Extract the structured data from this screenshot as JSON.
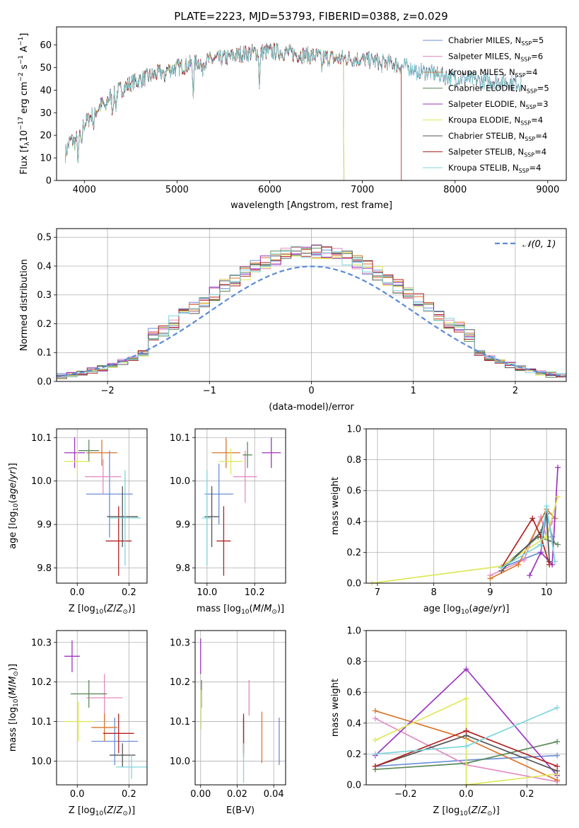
{
  "figure": {
    "title": "PLATE=2223, MJD=53793, FIBERID=0388, z=0.029"
  },
  "chart_data": [
    {
      "id": "spectrum",
      "type": "line",
      "title": "PLATE=2223, MJD=53793, FIBERID=0388, z=0.029",
      "xlabel": "wavelength [Angstrom, rest frame]",
      "ylabel": "Flux [f_λ 10^-17 erg cm^-2 s^-1 A^-1]",
      "xlim": [
        3700,
        9200
      ],
      "ylim": [
        0,
        68
      ],
      "xticks": [
        4000,
        5000,
        6000,
        7000,
        8000,
        9000
      ],
      "yticks": [
        0,
        10,
        20,
        30,
        40,
        50,
        60
      ],
      "legend_position": "top-right",
      "continuum": [
        [
          3795,
          12
        ],
        [
          3850,
          18
        ],
        [
          3900,
          17
        ],
        [
          3950,
          22
        ],
        [
          4000,
          25
        ],
        [
          4100,
          30
        ],
        [
          4200,
          34
        ],
        [
          4300,
          38
        ],
        [
          4500,
          43
        ],
        [
          4700,
          46
        ],
        [
          4900,
          49
        ],
        [
          5100,
          51
        ],
        [
          5300,
          53
        ],
        [
          5500,
          54
        ],
        [
          5700,
          56
        ],
        [
          5900,
          57
        ],
        [
          6100,
          57
        ],
        [
          6300,
          56
        ],
        [
          6500,
          55
        ],
        [
          6700,
          54
        ],
        [
          6900,
          54
        ],
        [
          7100,
          53
        ],
        [
          7300,
          52
        ],
        [
          7500,
          50
        ],
        [
          7700,
          48
        ],
        [
          7900,
          46
        ],
        [
          8100,
          45
        ],
        [
          8300,
          44
        ],
        [
          8500,
          44
        ],
        [
          8700,
          43
        ]
      ],
      "series": [
        {
          "name": "Chabrier MILES, N_SSP=5",
          "label_main": "Chabrier MILES, N",
          "label_sub": "SSP",
          "label_tail": "=5",
          "color": "#6b8fd6",
          "end": 8720
        },
        {
          "name": "Salpeter MILES, N_SSP=6",
          "label_main": "Salpeter MILES, N",
          "label_sub": "SSP",
          "label_tail": "=6",
          "color": "#e38bc2",
          "end": 8720
        },
        {
          "name": "Kroupa MILES, N_SSP=4",
          "label_main": "Kroupa MILES, N",
          "label_sub": "SSP",
          "label_tail": "=4",
          "color": "#d9772b",
          "end": 7420
        },
        {
          "name": "Chabrier ELODIE, N_SSP=5",
          "label_main": "Chabrier ELODIE, N",
          "label_sub": "SSP",
          "label_tail": "=5",
          "color": "#5d8a5a",
          "end": 6800
        },
        {
          "name": "Salpeter ELODIE, N_SSP=3",
          "label_main": "Salpeter ELODIE, N",
          "label_sub": "SSP",
          "label_tail": "=3",
          "color": "#9b36c0",
          "end": 6800
        },
        {
          "name": "Kroupa ELODIE, N_SSP=4",
          "label_main": "Kroupa ELODIE, N",
          "label_sub": "SSP",
          "label_tail": "=4",
          "color": "#dfe85a",
          "end": 6800
        },
        {
          "name": "Chabrier STELIB, N_SSP=4",
          "label_main": "Chabrier STELIB, N",
          "label_sub": "SSP",
          "label_tail": "=4",
          "color": "#555555",
          "end": 8720
        },
        {
          "name": "Salpeter STELIB, N_SSP=4",
          "label_main": "Salpeter STELIB, N",
          "label_sub": "SSP",
          "label_tail": "=4",
          "color": "#b22222",
          "end": 7420
        },
        {
          "name": "Kroupa STELIB, N_SSP=4",
          "label_main": "Kroupa STELIB, N",
          "label_sub": "SSP",
          "label_tail": "=4",
          "color": "#7ed6dc",
          "end": 8720
        }
      ]
    },
    {
      "id": "residuals",
      "type": "histogram",
      "xlabel": "(data-model)/error",
      "ylabel": "Normed distribution",
      "xlim": [
        -2.5,
        2.5
      ],
      "ylim": [
        0,
        0.53
      ],
      "xticks": [
        -2,
        -1,
        0,
        1,
        2
      ],
      "yticks": [
        0.0,
        0.1,
        0.2,
        0.3,
        0.4,
        0.5
      ],
      "bin_width": 0.1,
      "reference_curve": {
        "name": "N(0,1)",
        "style": "dashed",
        "color": "#5b8bd6",
        "mean": 0,
        "sigma": 1
      },
      "legend_position": "top-right",
      "grid": true
    },
    {
      "id": "age_vs_Z",
      "type": "errorbar",
      "xlabel": "Z [log10(Z/Z_sun)]",
      "ylabel": "age [log10(age/yr)]",
      "xlim": [
        -0.08,
        0.27
      ],
      "ylim": [
        9.765,
        10.12
      ],
      "xticks": [
        0.0,
        0.2
      ],
      "yticks": [
        9.8,
        9.9,
        10.0,
        10.1
      ],
      "points": [
        {
          "series": "Chabrier MILES",
          "x": 0.125,
          "y": 9.97,
          "xerr": 0.09,
          "yerr": 0.1
        },
        {
          "series": "Salpeter MILES",
          "x": 0.1,
          "y": 10.01,
          "xerr": 0.07,
          "yerr": 0.04
        },
        {
          "series": "Kroupa MILES",
          "x": 0.095,
          "y": 10.065,
          "xerr": 0.06,
          "yerr": 0.03
        },
        {
          "series": "Chabrier ELODIE",
          "x": 0.045,
          "y": 10.07,
          "xerr": 0.04,
          "yerr": 0.025
        },
        {
          "series": "Salpeter ELODIE",
          "x": -0.01,
          "y": 10.065,
          "xerr": 0.04,
          "yerr": 0.035
        },
        {
          "series": "Kroupa ELODIE",
          "x": 0.0,
          "y": 10.045,
          "xerr": 0.05,
          "yerr": 0.03
        },
        {
          "series": "Chabrier STELIB",
          "x": 0.175,
          "y": 9.918,
          "xerr": 0.06,
          "yerr": 0.07
        },
        {
          "series": "Salpeter STELIB",
          "x": 0.16,
          "y": 9.862,
          "xerr": 0.05,
          "yerr": 0.08
        },
        {
          "series": "Kroupa STELIB",
          "x": 0.185,
          "y": 9.915,
          "xerr": 0.06,
          "yerr": 0.11
        }
      ]
    },
    {
      "id": "age_vs_mass",
      "type": "errorbar",
      "xlabel": "mass [log10(M/M_sun)]",
      "ylabel": "",
      "xlim": [
        9.95,
        10.33
      ],
      "ylim": [
        9.765,
        10.12
      ],
      "xticks": [
        10.0,
        10.2
      ],
      "yticks": [
        9.8,
        9.9,
        10.0,
        10.1
      ],
      "points": [
        {
          "series": "Chabrier MILES",
          "x": 10.05,
          "y": 9.97,
          "xerr": 0.06,
          "yerr": 0.07
        },
        {
          "series": "Salpeter MILES",
          "x": 10.16,
          "y": 10.01,
          "xerr": 0.05,
          "yerr": 0.06
        },
        {
          "series": "Kroupa MILES",
          "x": 10.08,
          "y": 10.065,
          "xerr": 0.06,
          "yerr": 0.035
        },
        {
          "series": "Chabrier ELODIE",
          "x": 10.17,
          "y": 10.06,
          "xerr": 0.02,
          "yerr": 0.03
        },
        {
          "series": "Salpeter ELODIE",
          "x": 10.27,
          "y": 10.065,
          "xerr": 0.04,
          "yerr": 0.035
        },
        {
          "series": "Kroupa ELODIE",
          "x": 10.1,
          "y": 10.045,
          "xerr": 0.05,
          "yerr": 0.03
        },
        {
          "series": "Chabrier STELIB",
          "x": 10.02,
          "y": 9.918,
          "xerr": 0.03,
          "yerr": 0.07
        },
        {
          "series": "Salpeter STELIB",
          "x": 10.07,
          "y": 9.862,
          "xerr": 0.03,
          "yerr": 0.08
        },
        {
          "series": "Kroupa STELIB",
          "x": 10.0,
          "y": 9.915,
          "xerr": 0.02,
          "yerr": 0.11
        }
      ]
    },
    {
      "id": "mass_weight_vs_age",
      "type": "line",
      "xlabel": "age [log10(age/yr)]",
      "ylabel": "mass weight",
      "xlim": [
        6.8,
        10.35
      ],
      "ylim": [
        0.0,
        1.0
      ],
      "xticks": [
        7,
        8,
        9,
        10
      ],
      "yticks": [
        0.0,
        0.2,
        0.4,
        0.6,
        0.8,
        1.0
      ],
      "series": [
        {
          "name": "Chabrier MILES",
          "points": [
            [
              9.2,
              0.1
            ],
            [
              9.9,
              0.2
            ],
            [
              10.0,
              0.45
            ],
            [
              10.1,
              0.3
            ]
          ]
        },
        {
          "name": "Salpeter MILES",
          "points": [
            [
              9.0,
              0.05
            ],
            [
              9.6,
              0.15
            ],
            [
              9.9,
              0.43
            ],
            [
              10.0,
              0.3
            ],
            [
              10.1,
              0.4
            ]
          ]
        },
        {
          "name": "Kroupa MILES",
          "points": [
            [
              9.0,
              0.03
            ],
            [
              9.5,
              0.12
            ],
            [
              10.0,
              0.48
            ],
            [
              10.15,
              0.42
            ]
          ]
        },
        {
          "name": "Chabrier ELODIE",
          "points": [
            [
              9.2,
              0.1
            ],
            [
              9.85,
              0.3
            ],
            [
              10.1,
              0.27
            ],
            [
              10.2,
              0.25
            ]
          ]
        },
        {
          "name": "Salpeter ELODIE",
          "points": [
            [
              9.7,
              0.05
            ],
            [
              9.9,
              0.2
            ],
            [
              10.1,
              0.12
            ],
            [
              10.2,
              0.75
            ]
          ]
        },
        {
          "name": "Kroupa ELODIE",
          "points": [
            [
              6.9,
              0.0
            ],
            [
              9.2,
              0.11
            ],
            [
              10.0,
              0.3
            ],
            [
              10.2,
              0.56
            ]
          ]
        },
        {
          "name": "Chabrier STELIB",
          "points": [
            [
              9.2,
              0.08
            ],
            [
              9.9,
              0.33
            ],
            [
              10.0,
              0.45
            ],
            [
              10.05,
              0.14
            ]
          ]
        },
        {
          "name": "Salpeter STELIB",
          "points": [
            [
              9.2,
              0.1
            ],
            [
              9.75,
              0.42
            ],
            [
              9.9,
              0.3
            ],
            [
              10.05,
              0.12
            ]
          ]
        },
        {
          "name": "Kroupa STELIB",
          "points": [
            [
              9.2,
              0.1
            ],
            [
              9.9,
              0.25
            ],
            [
              10.0,
              0.5
            ],
            [
              10.15,
              0.14
            ]
          ]
        }
      ]
    },
    {
      "id": "mass_vs_Z",
      "type": "errorbar",
      "xlabel": "Z [log10(Z/Z_sun)]",
      "ylabel": "mass [log10(M/M_sun)]",
      "xlim": [
        -0.08,
        0.27
      ],
      "ylim": [
        9.94,
        10.33
      ],
      "xticks": [
        0.0,
        0.2
      ],
      "yticks": [
        10.0,
        10.1,
        10.2,
        10.3
      ],
      "points": [
        {
          "series": "Chabrier MILES",
          "x": 0.145,
          "y": 10.05,
          "xerr": 0.09,
          "yerr": 0.06
        },
        {
          "series": "Salpeter MILES",
          "x": 0.105,
          "y": 10.16,
          "xerr": 0.07,
          "yerr": 0.06
        },
        {
          "series": "Kroupa MILES",
          "x": 0.105,
          "y": 10.085,
          "xerr": 0.05,
          "yerr": 0.035
        },
        {
          "series": "Chabrier ELODIE",
          "x": 0.045,
          "y": 10.17,
          "xerr": 0.07,
          "yerr": 0.035
        },
        {
          "series": "Salpeter ELODIE",
          "x": -0.02,
          "y": 10.265,
          "xerr": 0.03,
          "yerr": 0.04
        },
        {
          "series": "Kroupa ELODIE",
          "x": 0.005,
          "y": 10.1,
          "xerr": 0.06,
          "yerr": 0.05
        },
        {
          "series": "Chabrier STELIB",
          "x": 0.175,
          "y": 10.015,
          "xerr": 0.05,
          "yerr": 0.03
        },
        {
          "series": "Salpeter STELIB",
          "x": 0.16,
          "y": 10.07,
          "xerr": 0.06,
          "yerr": 0.05
        },
        {
          "series": "Kroupa STELIB",
          "x": 0.21,
          "y": 9.985,
          "xerr": 0.06,
          "yerr": 0.03
        }
      ]
    },
    {
      "id": "mass_vs_ebv",
      "type": "errorbar",
      "xlabel": "E(B-V)",
      "ylabel": "",
      "xlim": [
        -0.003,
        0.0465
      ],
      "ylim": [
        9.94,
        10.33
      ],
      "xticks": [
        0.0,
        0.02,
        0.04
      ],
      "yticks": [
        10.0,
        10.1,
        10.2,
        10.3
      ],
      "points": [
        {
          "series": "Chabrier MILES",
          "x": 0.043,
          "y": 10.05,
          "xerr": 0,
          "yerr": 0.06
        },
        {
          "series": "Salpeter MILES",
          "x": 0.0265,
          "y": 10.16,
          "xerr": 0,
          "yerr": 0.045
        },
        {
          "series": "Kroupa MILES",
          "x": 0.0335,
          "y": 10.06,
          "xerr": 0,
          "yerr": 0.065
        },
        {
          "series": "Chabrier ELODIE",
          "x": 0.0005,
          "y": 10.17,
          "xerr": 0,
          "yerr": 0.035
        },
        {
          "series": "Salpeter ELODIE",
          "x": 0.0,
          "y": 10.265,
          "xerr": 0,
          "yerr": 0.045
        },
        {
          "series": "Kroupa ELODIE",
          "x": 0.0003,
          "y": 10.13,
          "xerr": 0,
          "yerr": 0.05
        },
        {
          "series": "Chabrier STELIB",
          "x": 0.0235,
          "y": 10.06,
          "xerr": 0,
          "yerr": 0.05
        },
        {
          "series": "Salpeter STELIB",
          "x": 0.0235,
          "y": 10.07,
          "xerr": 0,
          "yerr": 0.05
        },
        {
          "series": "Kroupa STELIB",
          "x": 0.0235,
          "y": 9.995,
          "xerr": 0,
          "yerr": 0.05
        }
      ]
    },
    {
      "id": "mass_weight_vs_Z",
      "type": "line",
      "xlabel": "Z [log10(Z/Z_sun)]",
      "ylabel": "mass weight",
      "xlim": [
        -0.33,
        0.33
      ],
      "ylim": [
        0.0,
        1.0
      ],
      "xticks": [
        -0.2,
        0.0,
        0.2
      ],
      "yticks": [
        0.0,
        0.2,
        0.4,
        0.6,
        0.8,
        1.0
      ],
      "series": [
        {
          "name": "Chabrier MILES",
          "points": [
            [
              -0.3,
              0.12
            ],
            [
              0.0,
              0.16
            ],
            [
              0.3,
              0.19
            ]
          ]
        },
        {
          "name": "Salpeter MILES",
          "points": [
            [
              -0.3,
              0.43
            ],
            [
              0.0,
              0.13
            ],
            [
              0.3,
              0.02
            ]
          ]
        },
        {
          "name": "Kroupa MILES",
          "points": [
            [
              -0.3,
              0.48
            ],
            [
              0.0,
              0.3
            ],
            [
              0.3,
              0.03
            ]
          ]
        },
        {
          "name": "Chabrier ELODIE",
          "points": [
            [
              -0.3,
              0.1
            ],
            [
              0.0,
              0.14
            ],
            [
              0.3,
              0.28
            ]
          ]
        },
        {
          "name": "Salpeter ELODIE",
          "points": [
            [
              -0.3,
              0.19
            ],
            [
              0.0,
              0.75
            ],
            [
              0.3,
              0.06
            ]
          ]
        },
        {
          "name": "Kroupa ELODIE",
          "points": [
            [
              -0.3,
              0.29
            ],
            [
              0.0,
              0.56
            ],
            [
              0.0,
              0.0
            ],
            [
              0.3,
              0.07
            ]
          ]
        },
        {
          "name": "Chabrier STELIB",
          "points": [
            [
              -0.3,
              0.12
            ],
            [
              0.0,
              0.32
            ],
            [
              0.3,
              0.09
            ]
          ]
        },
        {
          "name": "Salpeter STELIB",
          "points": [
            [
              -0.3,
              0.12
            ],
            [
              0.0,
              0.35
            ],
            [
              0.3,
              0.12
            ]
          ]
        },
        {
          "name": "Kroupa STELIB",
          "points": [
            [
              -0.3,
              0.2
            ],
            [
              0.0,
              0.25
            ],
            [
              0.3,
              0.5
            ]
          ]
        }
      ]
    }
  ]
}
